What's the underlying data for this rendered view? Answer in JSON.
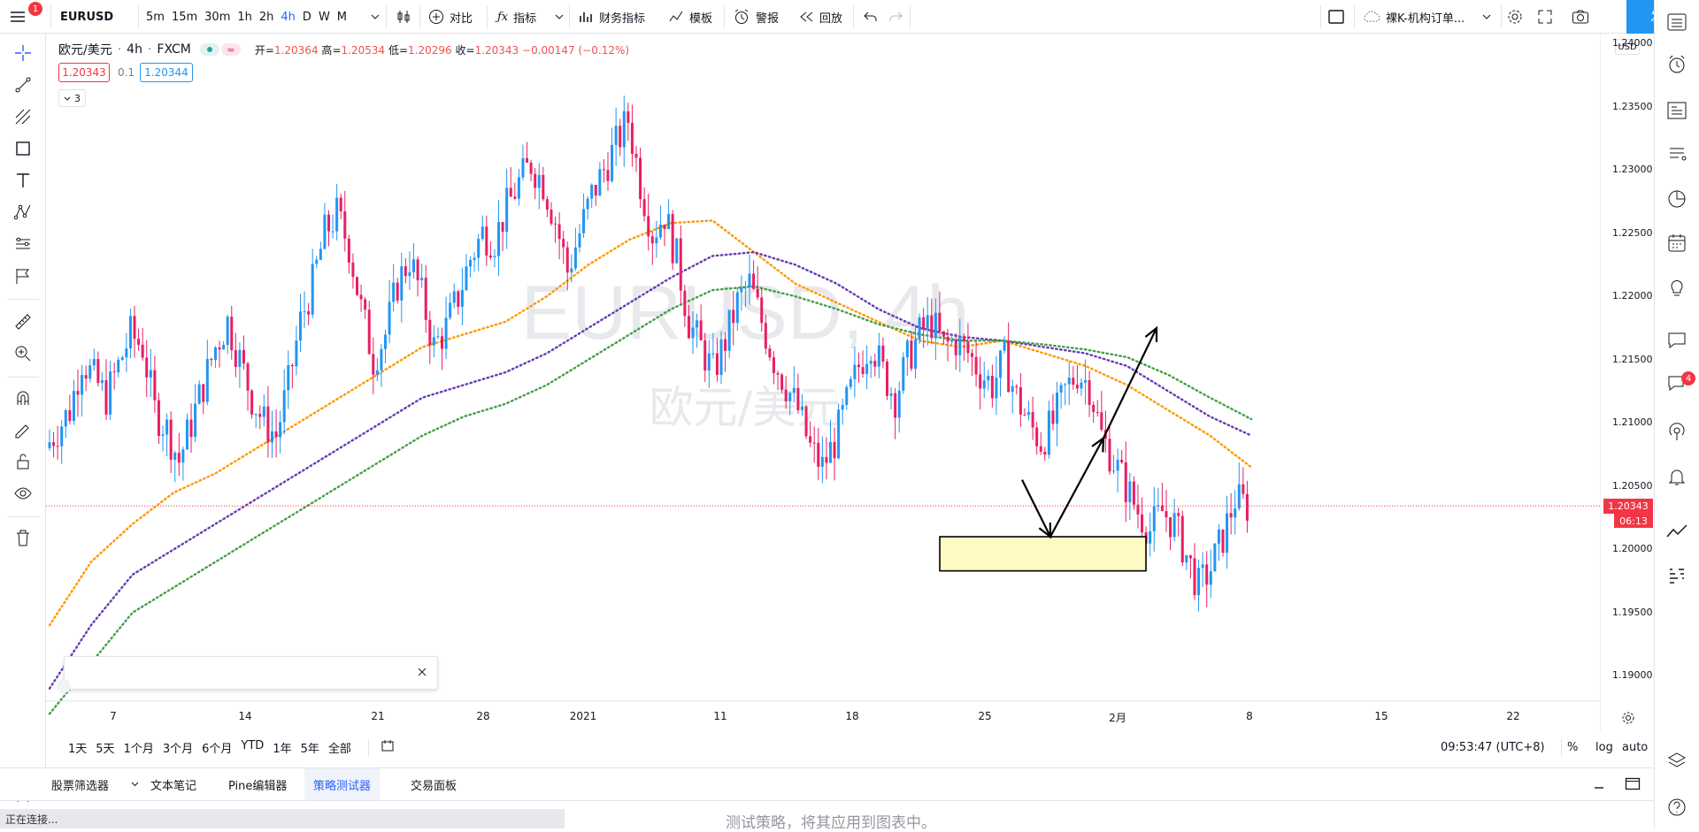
{
  "toolbar": {
    "symbol": "EURUSD",
    "notification_count": "1",
    "intervals": [
      "5m",
      "15m",
      "30m",
      "1h",
      "2h",
      "4h",
      "D",
      "W",
      "M"
    ],
    "active_interval": "4h",
    "compare_label": "对比",
    "indicators_label": "指标",
    "financials_label": "财务指标",
    "templates_label": "模板",
    "alert_label": "警报",
    "replay_label": "回放",
    "layout_name": "裸K-机构订单...",
    "publish_label": "发表"
  },
  "legend": {
    "symbol_desc": "欧元/美元",
    "interval": "4h",
    "exchange": "FXCM",
    "open_label": "开",
    "open": "1.20364",
    "high_label": "高",
    "high": "1.20534",
    "low_label": "低",
    "low": "1.20296",
    "close_label": "收",
    "close": "1.20343",
    "change": "−0.00147 (−0.12%)",
    "bid": "1.20343",
    "spread": "0.1",
    "ask": "1.20344",
    "indicators_count": "3"
  },
  "watermark": {
    "symbol": "EURUSD, 4h",
    "desc": "欧元/美元"
  },
  "price_axis": {
    "currency": "USD",
    "ticks": [
      "1.24000",
      "1.23500",
      "1.23000",
      "1.22500",
      "1.22000",
      "1.21500",
      "1.21000",
      "1.20500",
      "1.20000",
      "1.19500",
      "1.19000"
    ],
    "current_price": "1.20343",
    "countdown": "06:13"
  },
  "time_axis": {
    "ticks": [
      "7",
      "14",
      "21",
      "28",
      "2021",
      "11",
      "18",
      "25",
      "2月",
      "8",
      "15",
      "22"
    ]
  },
  "bottom_bar": {
    "ranges": [
      "1天",
      "5天",
      "1个月",
      "3个月",
      "6个月",
      "YTD",
      "1年",
      "5年",
      "全部"
    ],
    "clock": "09:53:47 (UTC+8)",
    "percent": "%",
    "log": "log",
    "auto": "auto"
  },
  "panel_tabs": [
    "股票筛选器",
    "文本笔记",
    "Pine编辑器",
    "策略测试器",
    "交易面板"
  ],
  "active_panel_tab": "策略测试器",
  "status_text": "正在连接...",
  "panel_hint": "测试策略，将其应用到图表中。",
  "alerts_badge": "4",
  "colors": {
    "up": "#2196f3",
    "down": "#e91e63",
    "ema_fast": "#ff9800",
    "ema_mid": "#673ab7",
    "ema_slow": "#43a047",
    "accent": "#2962ff",
    "zone_fill": "#fff9c4"
  },
  "chart_data": {
    "type": "candlestick",
    "symbol": "EURUSD",
    "timeframe": "4h",
    "ylim": [
      1.188,
      1.2405
    ],
    "x_labels": [
      "7",
      "14",
      "21",
      "28",
      "2021",
      "11",
      "18",
      "25",
      "2月",
      "8",
      "15",
      "22"
    ],
    "last_close": 1.20343,
    "closes": [
      1.208,
      1.2095,
      1.211,
      1.215,
      1.2135,
      1.212,
      1.2145,
      1.217,
      1.216,
      1.211,
      1.2095,
      1.207,
      1.21,
      1.213,
      1.216,
      1.218,
      1.215,
      1.212,
      1.21,
      1.209,
      1.213,
      1.218,
      1.221,
      1.225,
      1.2265,
      1.224,
      1.219,
      1.215,
      1.217,
      1.221,
      1.223,
      1.22,
      1.216,
      1.2175,
      1.22,
      1.223,
      1.225,
      1.2245,
      1.227,
      1.229,
      1.2305,
      1.229,
      1.226,
      1.222,
      1.225,
      1.228,
      1.23,
      1.232,
      1.234,
      1.229,
      1.225,
      1.2265,
      1.223,
      1.218,
      1.216,
      1.214,
      1.2165,
      1.2195,
      1.221,
      1.218,
      1.215,
      1.213,
      1.211,
      1.208,
      1.2065,
      1.2085,
      1.2115,
      1.2145,
      1.2165,
      1.214,
      1.212,
      1.215,
      1.217,
      1.218,
      1.216,
      1.2165,
      1.2155,
      1.214,
      1.213,
      1.215,
      1.212,
      1.21,
      1.2085,
      1.21,
      1.2125,
      1.214,
      1.213,
      1.209,
      1.207,
      1.205,
      1.203,
      1.2015,
      1.203,
      1.202,
      1.1995,
      1.197,
      1.1985,
      1.201,
      1.204,
      1.2034
    ],
    "emas": [
      {
        "name": "EMA fast",
        "values": [
          1.194,
          1.199,
          1.202,
          1.2045,
          1.206,
          1.208,
          1.21,
          1.212,
          1.214,
          1.216,
          1.217,
          1.218,
          1.22,
          1.2225,
          1.2245,
          1.2258,
          1.226,
          1.2235,
          1.221,
          1.2195,
          1.218,
          1.2165,
          1.216,
          1.2165,
          1.2155,
          1.2145,
          1.213,
          1.211,
          1.209,
          1.2065
        ]
      },
      {
        "name": "EMA mid",
        "values": [
          1.189,
          1.194,
          1.198,
          1.2,
          1.202,
          1.204,
          1.206,
          1.208,
          1.21,
          1.212,
          1.213,
          1.214,
          1.2155,
          1.2175,
          1.2195,
          1.2215,
          1.2232,
          1.2235,
          1.2225,
          1.221,
          1.219,
          1.2175,
          1.2168,
          1.2165,
          1.216,
          1.2155,
          1.2145,
          1.2125,
          1.2105,
          1.209
        ]
      },
      {
        "name": "EMA slow",
        "values": [
          1.187,
          1.191,
          1.195,
          1.197,
          1.199,
          1.201,
          1.203,
          1.205,
          1.207,
          1.209,
          1.2105,
          1.2115,
          1.213,
          1.215,
          1.217,
          1.219,
          1.2205,
          1.2208,
          1.22,
          1.219,
          1.2178,
          1.217,
          1.2165,
          1.2165,
          1.2162,
          1.2158,
          1.2152,
          1.2138,
          1.212,
          1.2103
        ]
      }
    ],
    "annotations": {
      "zone": {
        "price_top": 1.201,
        "price_bottom": 1.1983
      },
      "arrow_path": [
        [
          1.2055
        ],
        [
          1.201
        ],
        [
          1.2088
        ],
        [
          1.2175
        ]
      ]
    }
  }
}
